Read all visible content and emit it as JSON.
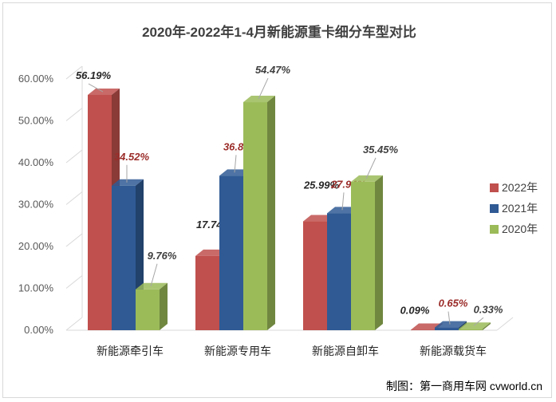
{
  "chart_data": {
    "type": "bar",
    "title": "2020年-2022年1-4月新能源重卡细分车型对比",
    "xlabel": "",
    "ylabel": "",
    "ylim": [
      0,
      60
    ],
    "yticks": [
      "0.00%",
      "10.00%",
      "20.00%",
      "30.00%",
      "40.00%",
      "50.00%",
      "60.00%"
    ],
    "categories": [
      "新能源牵引车",
      "新能源专用车",
      "新能源自卸车",
      "新能源载货车"
    ],
    "series": [
      {
        "name": "2022年",
        "values": [
          56.19,
          17.74,
          25.99,
          0.09
        ],
        "labels": [
          "56.19%",
          "17.74%",
          "25.99%",
          "0.09%"
        ],
        "color": "#c0504d",
        "label_color": "#262626"
      },
      {
        "name": "2021年",
        "values": [
          34.52,
          36.89,
          27.94,
          0.65
        ],
        "labels": [
          "34.52%",
          "36.89%",
          "27.94%",
          "0.65%"
        ],
        "color": "#2f5a94",
        "label_color": "#9b2d2a"
      },
      {
        "name": "2020年",
        "values": [
          9.76,
          54.47,
          35.45,
          0.33
        ],
        "labels": [
          "9.76%",
          "54.47%",
          "35.45%",
          "0.33%"
        ],
        "color": "#9bbb59",
        "label_color": "#404040"
      }
    ],
    "legend_position": "right",
    "grid": false,
    "bar_style": "3d"
  },
  "credit": "制图：第一商用车网 cvworld.cn"
}
